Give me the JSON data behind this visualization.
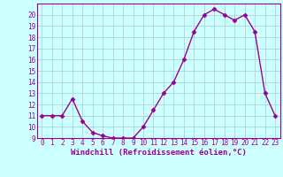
{
  "x": [
    0,
    1,
    2,
    3,
    4,
    5,
    6,
    7,
    8,
    9,
    10,
    11,
    12,
    13,
    14,
    15,
    16,
    17,
    18,
    19,
    20,
    21,
    22,
    23
  ],
  "y": [
    11,
    11,
    11,
    12.5,
    10.5,
    9.5,
    9.2,
    9,
    9,
    9,
    10,
    11.5,
    13,
    14,
    16,
    18.5,
    20,
    20.5,
    20,
    19.5,
    20,
    18.5,
    13,
    11
  ],
  "line_color": "#990099",
  "marker": "D",
  "marker_size": 2.5,
  "bg_color": "#ccffff",
  "grid_color": "#aacccc",
  "xlabel": "Windchill (Refroidissement éolien,°C)",
  "xlabel_fontsize": 6.5,
  "ylim": [
    9,
    21
  ],
  "xlim": [
    -0.5,
    23.5
  ],
  "yticks": [
    9,
    10,
    11,
    12,
    13,
    14,
    15,
    16,
    17,
    18,
    19,
    20
  ],
  "xticks": [
    0,
    1,
    2,
    3,
    4,
    5,
    6,
    7,
    8,
    9,
    10,
    11,
    12,
    13,
    14,
    15,
    16,
    17,
    18,
    19,
    20,
    21,
    22,
    23
  ],
  "tick_fontsize": 5.5,
  "tick_color": "#990099",
  "spine_color": "#990099",
  "linewidth": 1.0
}
